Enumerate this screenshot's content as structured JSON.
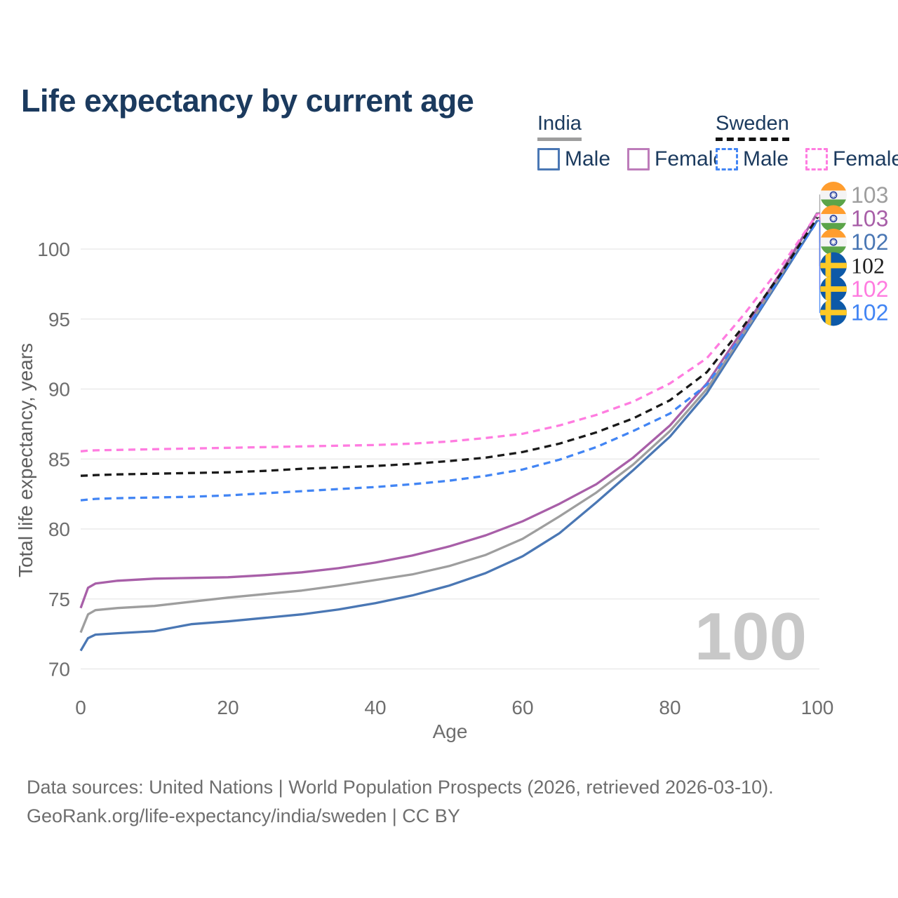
{
  "title": "Life expectancy by current age",
  "legend": {
    "groups": [
      {
        "id": "india",
        "label": "India",
        "underline_color": "#9e9e9e",
        "underline_style": "solid",
        "items": [
          {
            "id": "india_male",
            "label": "Male",
            "color": "#4a77b4",
            "dashed": false
          },
          {
            "id": "india_female",
            "label": "Female",
            "color": "#bd7cba",
            "dashed": false
          }
        ]
      },
      {
        "id": "sweden",
        "label": "Sweden",
        "underline_color": "#121212",
        "underline_style": "dashed",
        "items": [
          {
            "id": "sweden_male",
            "label": "Male",
            "color": "#4285f4",
            "dashed": true
          },
          {
            "id": "sweden_female",
            "label": "Female",
            "color": "#ff7ce0",
            "dashed": true
          }
        ]
      }
    ]
  },
  "chart_data": {
    "type": "line",
    "title": "Life expectancy by current age",
    "xlabel": "Age",
    "ylabel": "Total life expectancy, years",
    "xlim": [
      0,
      100
    ],
    "ylim": [
      70,
      104
    ],
    "x_ticks": [
      0,
      20,
      40,
      60,
      80,
      100
    ],
    "y_ticks": [
      70,
      75,
      80,
      85,
      90,
      95,
      100
    ],
    "grid": "horizontal",
    "legend_position": "top-right",
    "watermark": "100",
    "x": [
      0,
      1,
      2,
      5,
      10,
      15,
      20,
      25,
      30,
      35,
      40,
      45,
      50,
      55,
      60,
      65,
      70,
      75,
      80,
      85,
      90,
      95,
      100
    ],
    "series": [
      {
        "id": "india_male",
        "name": "India Male",
        "color": "#4a77b4",
        "dashed": false,
        "values": [
          71.3,
          72.2,
          72.45,
          72.55,
          72.7,
          73.2,
          73.4,
          73.65,
          73.9,
          74.25,
          74.7,
          75.25,
          75.95,
          76.85,
          78.05,
          79.7,
          81.9,
          84.2,
          86.6,
          89.7,
          93.8,
          97.9,
          102.05
        ]
      },
      {
        "id": "india_total",
        "name": "India Total",
        "color": "#9e9e9e",
        "dashed": false,
        "values": [
          72.6,
          73.9,
          74.2,
          74.35,
          74.5,
          74.8,
          75.1,
          75.35,
          75.6,
          75.95,
          76.35,
          76.75,
          77.35,
          78.15,
          79.3,
          80.9,
          82.6,
          84.6,
          87.0,
          90.0,
          94.0,
          98.1,
          102.6
        ]
      },
      {
        "id": "india_female",
        "name": "India Female",
        "color": "#a85fa8",
        "dashed": false,
        "values": [
          74.35,
          75.8,
          76.1,
          76.3,
          76.45,
          76.5,
          76.55,
          76.7,
          76.9,
          77.2,
          77.6,
          78.1,
          78.75,
          79.55,
          80.55,
          81.8,
          83.2,
          85.1,
          87.4,
          90.4,
          94.3,
          98.3,
          102.55
        ]
      },
      {
        "id": "sweden_male",
        "name": "Sweden Male",
        "color": "#4285f4",
        "dashed": true,
        "values": [
          82.05,
          82.1,
          82.15,
          82.2,
          82.25,
          82.3,
          82.4,
          82.55,
          82.7,
          82.85,
          83.0,
          83.2,
          83.45,
          83.8,
          84.25,
          84.95,
          85.85,
          87.0,
          88.25,
          90.3,
          94.0,
          98.0,
          102.0
        ]
      },
      {
        "id": "sweden_total",
        "name": "Sweden Total",
        "color": "#1a1a1a",
        "dashed": true,
        "values": [
          83.8,
          83.82,
          83.85,
          83.9,
          83.95,
          84.0,
          84.05,
          84.15,
          84.3,
          84.4,
          84.5,
          84.65,
          84.85,
          85.1,
          85.5,
          86.1,
          86.9,
          87.9,
          89.2,
          91.2,
          94.5,
          98.2,
          102.25
        ]
      },
      {
        "id": "sweden_female",
        "name": "Sweden Female",
        "color": "#ff7ce0",
        "dashed": true,
        "values": [
          85.55,
          85.6,
          85.62,
          85.65,
          85.7,
          85.75,
          85.8,
          85.85,
          85.9,
          85.95,
          86.0,
          86.1,
          86.25,
          86.5,
          86.8,
          87.4,
          88.15,
          89.1,
          90.4,
          92.2,
          95.3,
          98.7,
          102.5
        ]
      }
    ],
    "end_labels": [
      {
        "series": "india_total",
        "flag": "india",
        "value": "103",
        "color": "#9e9e9e"
      },
      {
        "series": "india_female",
        "flag": "india",
        "value": "103",
        "color": "#a85fa8"
      },
      {
        "series": "india_male",
        "flag": "india",
        "value": "102",
        "color": "#4a77b4"
      },
      {
        "series": "sweden_total",
        "flag": "sweden",
        "value": "102",
        "color": "#1f1f1f"
      },
      {
        "series": "sweden_female",
        "flag": "sweden",
        "value": "102",
        "color": "#ff7ce0"
      },
      {
        "series": "sweden_male",
        "flag": "sweden",
        "value": "102",
        "color": "#4285f4"
      }
    ]
  },
  "footer": {
    "line1": "Data sources: United Nations | World Population Prospects (2026, retrieved 2026-03-10).",
    "line2": "GeoRank.org/life-expectancy/india/sweden | CC BY"
  }
}
